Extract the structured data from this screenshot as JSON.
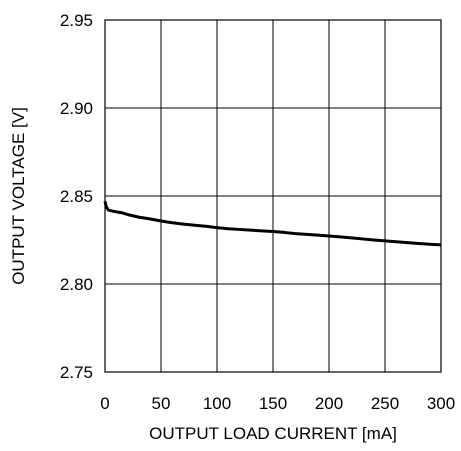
{
  "chart_data": {
    "type": "line",
    "title": "",
    "xlabel": "OUTPUT LOAD CURRENT [mA]",
    "ylabel": "OUTPUT VOLTAGE [V]",
    "xlim": [
      0,
      300
    ],
    "ylim": [
      2.75,
      2.95
    ],
    "x_ticks": [
      0,
      50,
      100,
      150,
      200,
      250,
      300
    ],
    "y_ticks": [
      2.75,
      2.8,
      2.85,
      2.9,
      2.95
    ],
    "x_tick_labels": [
      "0",
      "50",
      "100",
      "150",
      "200",
      "250",
      "300"
    ],
    "y_tick_labels": [
      "2.75",
      "2.80",
      "2.85",
      "2.90",
      "2.95"
    ],
    "grid": true,
    "series": [
      {
        "color": "#000000",
        "x": [
          0,
          1,
          3,
          6,
          10,
          15,
          20,
          30,
          40,
          50,
          60,
          70,
          80,
          90,
          100,
          110,
          120,
          130,
          140,
          150,
          160,
          170,
          180,
          190,
          200,
          210,
          220,
          230,
          240,
          250,
          260,
          270,
          280,
          290,
          300
        ],
        "y": [
          2.847,
          2.844,
          2.842,
          2.8415,
          2.841,
          2.8405,
          2.8395,
          2.838,
          2.837,
          2.8358,
          2.8348,
          2.834,
          2.8334,
          2.8328,
          2.832,
          2.8314,
          2.831,
          2.8306,
          2.8302,
          2.8298,
          2.8293,
          2.8286,
          2.8282,
          2.8278,
          2.8273,
          2.8268,
          2.8262,
          2.8256,
          2.825,
          2.8245,
          2.824,
          2.8235,
          2.823,
          2.8226,
          2.8222
        ]
      }
    ]
  }
}
